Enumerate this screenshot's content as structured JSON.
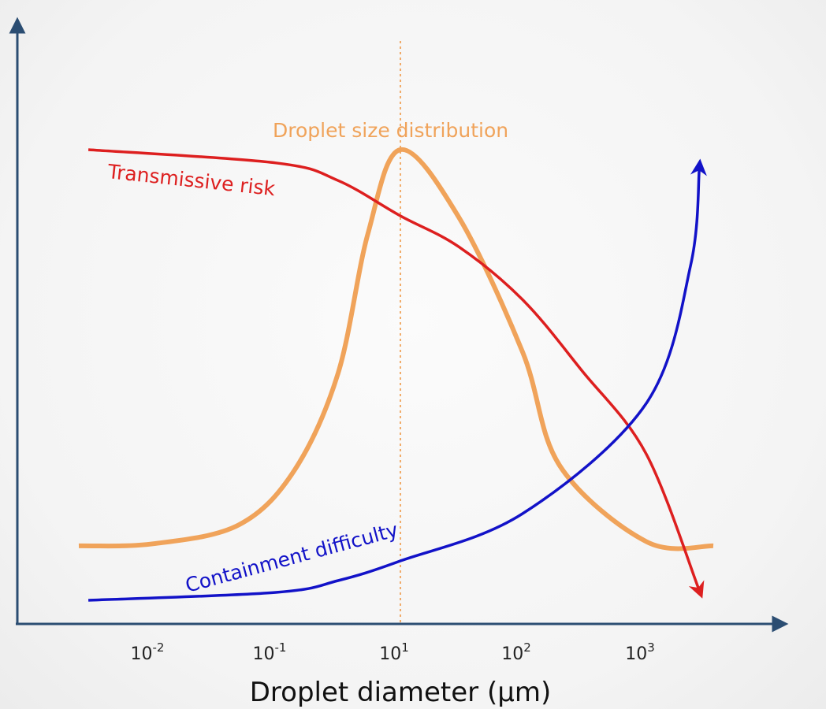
{
  "colors": {
    "axis": "#2b4d72",
    "distribution": "#f0a35a",
    "risk": "#dd1f1f",
    "containment": "#1212c8"
  },
  "chart_data": {
    "type": "line",
    "title": "",
    "xlabel": "Droplet diameter (μm)",
    "ylabel": "",
    "xscale": "log",
    "x_ticks": [
      {
        "base": "10",
        "exp": "-2",
        "value": 0.01
      },
      {
        "base": "10",
        "exp": "-1",
        "value": 0.1
      },
      {
        "base": "10",
        "exp": "1",
        "value": 10
      },
      {
        "base": "10",
        "exp": "2",
        "value": 100
      },
      {
        "base": "10",
        "exp": "3",
        "value": 1000
      }
    ],
    "reference_line": {
      "x": 10,
      "style": "dotted"
    },
    "grid": false,
    "series": [
      {
        "name": "Droplet size distribution",
        "shape": "bell curve",
        "peak_x": 10,
        "x": [
          0.0035,
          0.01,
          0.05,
          0.2,
          1,
          3,
          10,
          30,
          100,
          200,
          1000,
          4000
        ],
        "y": [
          0.06,
          0.065,
          0.11,
          0.24,
          0.47,
          0.8,
          1.0,
          0.84,
          0.52,
          0.25,
          0.07,
          0.06
        ]
      },
      {
        "name": "Transmissive risk",
        "shape": "decreasing",
        "x": [
          0.004,
          0.1,
          1,
          10,
          30,
          100,
          300,
          1000,
          3000
        ],
        "y": [
          1.0,
          0.97,
          0.93,
          0.85,
          0.78,
          0.66,
          0.5,
          0.31,
          0.0
        ]
      },
      {
        "name": "Containment difficulty",
        "shape": "increasing",
        "x": [
          0.004,
          0.1,
          1,
          10,
          100,
          1000,
          2500,
          3000
        ],
        "y": [
          0.0,
          0.02,
          0.05,
          0.1,
          0.22,
          0.5,
          0.85,
          1.1
        ]
      }
    ]
  }
}
